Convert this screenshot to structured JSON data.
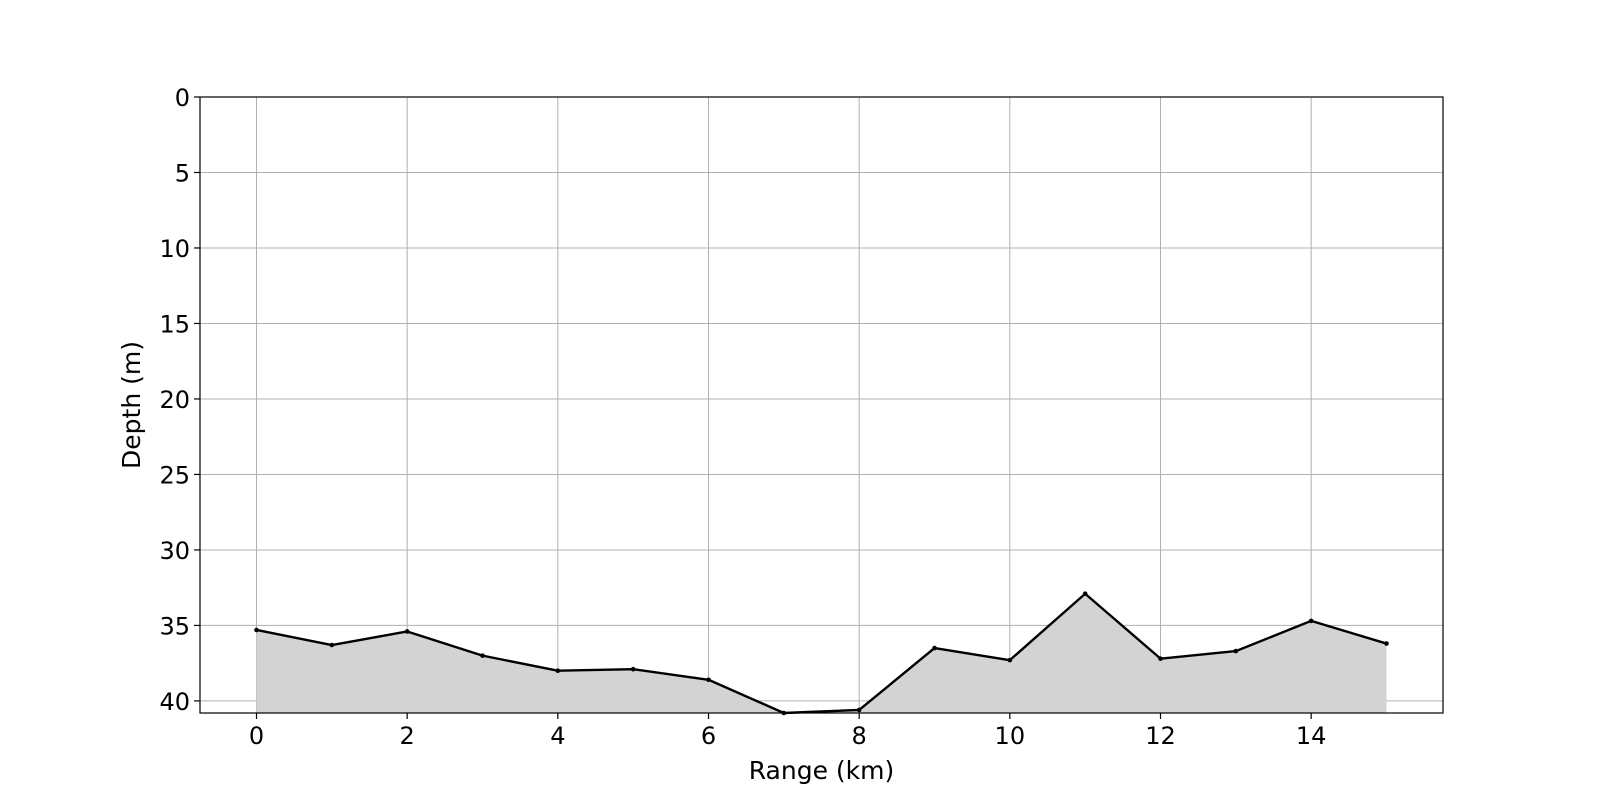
{
  "chart_data": {
    "type": "area",
    "title": "",
    "xlabel": "Range (km)",
    "ylabel": "Depth (m)",
    "xlim": [
      -0.75,
      15.75
    ],
    "ylim": [
      40.8,
      0
    ],
    "y_inverted": true,
    "x_ticks": [
      0,
      2,
      4,
      6,
      8,
      10,
      12,
      14
    ],
    "y_ticks": [
      0,
      5,
      10,
      15,
      20,
      25,
      30,
      35,
      40
    ],
    "grid": true,
    "x": [
      0,
      1,
      2,
      3,
      4,
      5,
      6,
      7,
      8,
      9,
      10,
      11,
      12,
      13,
      14,
      15
    ],
    "y": [
      35.3,
      36.3,
      35.4,
      37.0,
      38.0,
      37.9,
      38.6,
      40.8,
      40.6,
      36.5,
      37.3,
      32.9,
      37.2,
      36.7,
      34.7,
      36.2
    ],
    "colors": {
      "line": "#000000",
      "fill": "#d3d3d3",
      "grid": "#b0b0b0",
      "axes": "#000000"
    }
  }
}
